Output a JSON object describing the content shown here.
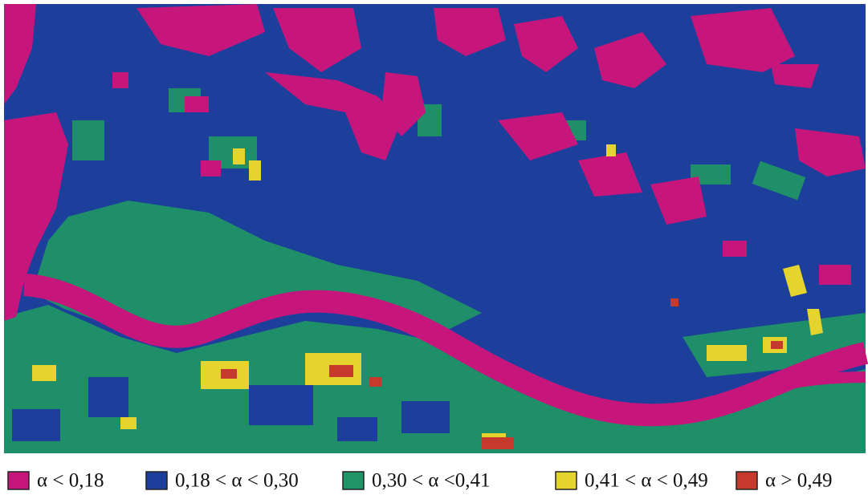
{
  "legend": {
    "items": [
      {
        "label": "α < 0,18",
        "color": "#c6167c"
      },
      {
        "label": "0,18 < α < 0,30",
        "color": "#1c3f9c"
      },
      {
        "label": "0,30 < α <0,41",
        "color": "#1f9466"
      },
      {
        "label": "0,41 < α < 0,49",
        "color": "#e6d42e"
      },
      {
        "label": "α > 0,49",
        "color": "#c63a2e"
      }
    ]
  }
}
